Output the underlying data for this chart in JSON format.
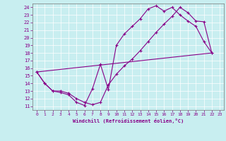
{
  "xlabel": "Windchill (Refroidissement éolien,°C)",
  "bg_color": "#c8eef0",
  "line_color": "#880088",
  "xmin": 0,
  "xmax": 23,
  "ymin": 11,
  "ymax": 24,
  "line1_x": [
    0,
    1,
    2,
    3,
    4,
    5,
    6,
    7,
    8,
    9,
    10,
    11,
    12,
    13,
    14,
    15,
    16,
    17,
    18,
    19,
    20,
    21,
    22
  ],
  "line1_y": [
    15.5,
    14.0,
    13.0,
    12.8,
    12.5,
    11.5,
    11.1,
    13.3,
    16.5,
    13.2,
    19.0,
    20.5,
    21.5,
    22.5,
    23.8,
    24.2,
    23.5,
    24.0,
    23.0,
    22.2,
    21.5,
    19.5,
    18.0
  ],
  "line2_x": [
    0,
    1,
    2,
    3,
    4,
    5,
    6,
    7,
    8,
    9,
    10,
    11,
    12,
    13,
    14,
    15,
    16,
    17,
    18,
    19,
    20,
    21,
    22
  ],
  "line2_y": [
    15.5,
    14.0,
    13.0,
    13.0,
    12.7,
    12.0,
    11.5,
    11.2,
    11.5,
    13.8,
    15.2,
    16.3,
    17.2,
    18.3,
    19.5,
    20.7,
    21.8,
    22.8,
    24.0,
    23.3,
    22.2,
    22.1,
    18.0
  ],
  "line3_x": [
    0,
    22
  ],
  "line3_y": [
    15.5,
    18.0
  ]
}
